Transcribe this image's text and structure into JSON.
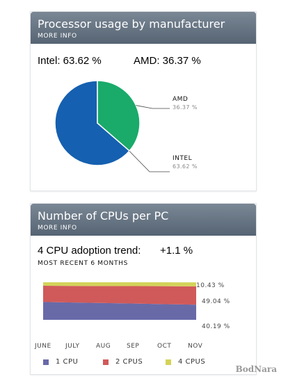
{
  "panel1": {
    "title": "Processor usage by manufacturer",
    "more_info": "MORE INFO",
    "intel_summary": "Intel: 63.62 %",
    "amd_summary": "AMD: 36.37 %",
    "colors": {
      "intel": "#1560b0",
      "amd": "#1aaa6a"
    }
  },
  "panel2": {
    "title": "Number of CPUs per PC",
    "more_info": "MORE INFO",
    "trend_label": "4 CPU adoption trend:",
    "trend_value": "+1.1 %",
    "period": "MOST RECENT 6 MONTHS",
    "colors": {
      "cpu1": "#686aa8",
      "cpu2": "#d05a5a",
      "cpu4": "#d3d35a"
    }
  },
  "watermark": "BodNara",
  "chart_data": [
    {
      "type": "pie",
      "title": "Processor usage by manufacturer",
      "slices": [
        {
          "label": "INTEL",
          "value": 63.62,
          "value_label": "63.62 %"
        },
        {
          "label": "AMD",
          "value": 36.37,
          "value_label": "36.37 %"
        }
      ]
    },
    {
      "type": "area",
      "stacked": true,
      "title": "Number of CPUs per PC",
      "categories": [
        "JUNE",
        "JULY",
        "AUG",
        "SEP",
        "OCT",
        "NOV"
      ],
      "series": [
        {
          "name": "1 CPU",
          "values": [
            47.5,
            46.1,
            44.7,
            43.2,
            41.7,
            40.19
          ]
        },
        {
          "name": "2 CPUS",
          "values": [
            43.2,
            44.1,
            45.3,
            46.6,
            47.9,
            49.04
          ]
        },
        {
          "name": "4 CPUS",
          "values": [
            9.3,
            9.8,
            10.0,
            10.2,
            10.4,
            10.43
          ]
        }
      ],
      "end_labels": [
        "10.43 %",
        "49.04 %",
        "40.19 %"
      ],
      "ylim": [
        0,
        100
      ],
      "legend": "bottom"
    }
  ]
}
